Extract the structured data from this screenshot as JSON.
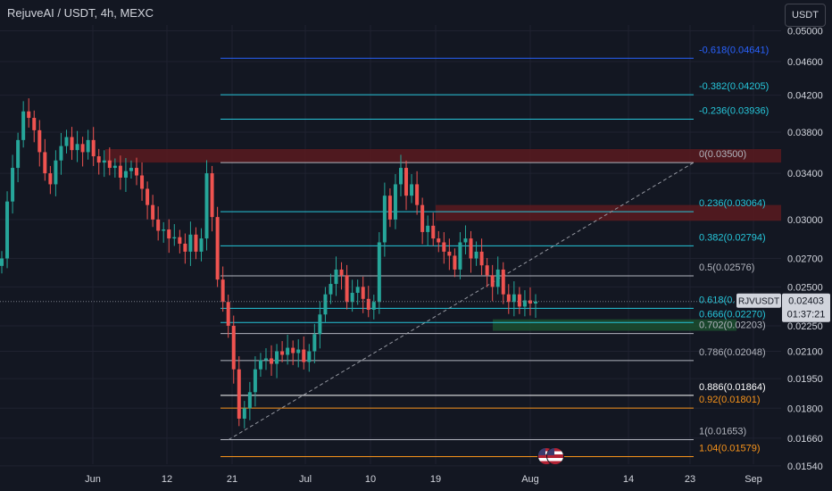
{
  "header": {
    "title": "RejuveAI / USDT, 4h, MEXC",
    "currency_button": "USDT"
  },
  "colors": {
    "background": "#131722",
    "grid": "#1f2230",
    "text": "#b2b5be",
    "axis_text": "#d1d4dc",
    "up_candle": "#26a69a",
    "down_candle": "#ef5350",
    "resistance_zone": "#5b1a1e",
    "support_zone": "#1b4d2e",
    "fib_blue": "#2962ff",
    "fib_teal": "#26c6da",
    "fib_gray": "#b2b5be",
    "fib_orange": "#f7931a",
    "price_tag": "#d1d4dc"
  },
  "icons": [
    "us-flag-icon",
    "us-flag-icon"
  ],
  "chart_data": {
    "type": "candlestick",
    "title": "RejuveAI / USDT, 4h, MEXC",
    "y_scale": "log",
    "ylim": [
      0.0151,
      0.0503
    ],
    "y_ticks": [
      "0.05000",
      "0.04600",
      "0.04200",
      "0.03800",
      "0.03400",
      "0.03000",
      "0.02700",
      "0.02500",
      "0.02250",
      "0.02100",
      "0.01950",
      "0.01800",
      "0.01660",
      "0.01540"
    ],
    "x_ticks": [
      "Jun",
      "12",
      "21",
      "Jul",
      "10",
      "19",
      "Aug",
      "14",
      "23",
      "Sep"
    ],
    "grid": true,
    "fib_levels": [
      {
        "label": "-0.618(0.04641)",
        "value": 0.04641,
        "color": "#2962ff"
      },
      {
        "label": "-0.382(0.04205)",
        "value": 0.04205,
        "color": "#26c6da"
      },
      {
        "label": "-0.236(0.03936)",
        "value": 0.03936,
        "color": "#26c6da"
      },
      {
        "label": "0(0.03500)",
        "value": 0.035,
        "color": "#b2b5be"
      },
      {
        "label": "0.236(0.03064)",
        "value": 0.03064,
        "color": "#26c6da"
      },
      {
        "label": "0.382(0.02794)",
        "value": 0.02794,
        "color": "#26c6da"
      },
      {
        "label": "0.5(0.02576)",
        "value": 0.02576,
        "color": "#b2b5be"
      },
      {
        "label": "0.618(0.",
        "value": 0.02359,
        "color": "#26c6da"
      },
      {
        "label": "0.666(0.02270)",
        "value": 0.0227,
        "color": "#26c6da"
      },
      {
        "label": "0.702(0.02203)",
        "value": 0.02203,
        "color": "#b2b5be"
      },
      {
        "label": "0.786(0.02048)",
        "value": 0.02048,
        "color": "#b2b5be"
      },
      {
        "label": "0.886(0.01864)",
        "value": 0.01864,
        "color": "#ffffff"
      },
      {
        "label": "0.92(0.01801)",
        "value": 0.01801,
        "color": "#f7931a"
      },
      {
        "label": "1(0.01653)",
        "value": 0.01653,
        "color": "#b2b5be"
      },
      {
        "label": "1.04(0.01579)",
        "value": 0.01579,
        "color": "#f7931a"
      }
    ],
    "zones": [
      {
        "kind": "resistance",
        "from": 0.035,
        "to": 0.0363
      },
      {
        "kind": "resistance",
        "from": 0.0299,
        "to": 0.0312
      },
      {
        "kind": "support",
        "from": 0.0222,
        "to": 0.0229
      }
    ],
    "price_tag": {
      "symbol": "RJVUSDT",
      "price": "0.02403",
      "countdown": "01:37:21"
    },
    "closes": [
      0.027,
      0.0315,
      0.0345,
      0.0372,
      0.0402,
      0.0395,
      0.0382,
      0.036,
      0.034,
      0.033,
      0.0352,
      0.0366,
      0.0375,
      0.0362,
      0.0368,
      0.036,
      0.0372,
      0.0356,
      0.035,
      0.0352,
      0.0345,
      0.0347,
      0.0336,
      0.0342,
      0.0345,
      0.0338,
      0.0326,
      0.0312,
      0.03,
      0.0291,
      0.0292,
      0.0285,
      0.0286,
      0.0281,
      0.0275,
      0.0288,
      0.0275,
      0.0285,
      0.034,
      0.0302,
      0.0255,
      0.024,
      0.0225,
      0.02,
      0.0175,
      0.018,
      0.0188,
      0.02,
      0.0205,
      0.0206,
      0.0203,
      0.021,
      0.0208,
      0.0212,
      0.0209,
      0.0211,
      0.0204,
      0.021,
      0.022,
      0.0232,
      0.0245,
      0.0252,
      0.0262,
      0.0258,
      0.024,
      0.0246,
      0.025,
      0.0242,
      0.0235,
      0.024,
      0.0282,
      0.032,
      0.03,
      0.033,
      0.0345,
      0.032,
      0.033,
      0.0312,
      0.029,
      0.0295,
      0.0285,
      0.0282,
      0.0275,
      0.0272,
      0.0262,
      0.0282,
      0.0285,
      0.027,
      0.0275,
      0.0265,
      0.0258,
      0.025,
      0.0262,
      0.0245,
      0.024,
      0.0245,
      0.0237,
      0.0241,
      0.0239,
      0.02403
    ]
  }
}
